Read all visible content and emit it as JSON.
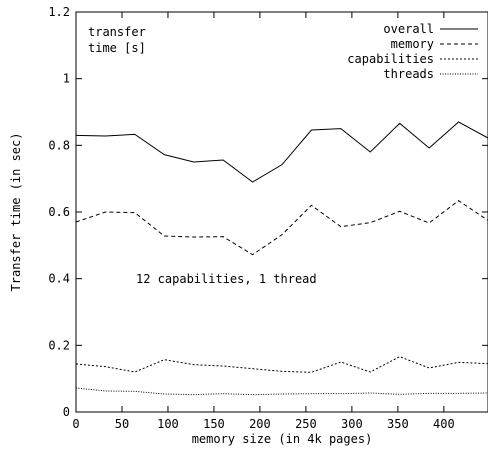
{
  "chart_data": {
    "type": "line",
    "title": "",
    "xlabel": "memory size (in 4k pages)",
    "ylabel": "Transfer time (in sec)",
    "xlim": [
      0,
      448
    ],
    "ylim": [
      0,
      1.2
    ],
    "xticks": [
      0,
      50,
      100,
      150,
      200,
      250,
      300,
      350,
      400
    ],
    "xtick_labels": [
      "0",
      "50",
      "100",
      "150",
      "200",
      "250",
      "300",
      "350",
      "400"
    ],
    "yticks": [
      0,
      0.2,
      0.4,
      0.6,
      0.8,
      1,
      1.2
    ],
    "ytick_labels": [
      "0",
      "0.2",
      "0.4",
      "0.6",
      "0.8",
      "1",
      "1.2"
    ],
    "grid": false,
    "legend_position": "top-right",
    "legend_title": "transfer time [s]",
    "legend_title_lines": [
      "transfer",
      "time [s]"
    ],
    "annotation": "12 capabilities, 1 thread",
    "x": [
      0,
      32,
      64,
      96,
      128,
      160,
      192,
      224,
      256,
      288,
      320,
      352,
      384,
      416,
      448
    ],
    "series": [
      {
        "name": "overall",
        "style": "solid",
        "values": [
          0.83,
          0.828,
          0.833,
          0.772,
          0.75,
          0.756,
          0.69,
          0.742,
          0.846,
          0.85,
          0.78,
          0.866,
          0.792,
          0.87,
          0.822
        ]
      },
      {
        "name": "memory",
        "style": "dashed",
        "values": [
          0.57,
          0.6,
          0.598,
          0.528,
          0.525,
          0.526,
          0.472,
          0.532,
          0.62,
          0.556,
          0.568,
          0.602,
          0.567,
          0.634,
          0.575
        ]
      },
      {
        "name": "capabilities",
        "style": "dotted",
        "values": [
          0.144,
          0.136,
          0.12,
          0.157,
          0.142,
          0.138,
          0.13,
          0.122,
          0.119,
          0.15,
          0.12,
          0.166,
          0.132,
          0.149,
          0.145
        ]
      },
      {
        "name": "threads",
        "style": "fine-dotted",
        "values": [
          0.072,
          0.063,
          0.062,
          0.054,
          0.052,
          0.055,
          0.052,
          0.054,
          0.055,
          0.055,
          0.057,
          0.053,
          0.056,
          0.056,
          0.057
        ]
      }
    ]
  }
}
